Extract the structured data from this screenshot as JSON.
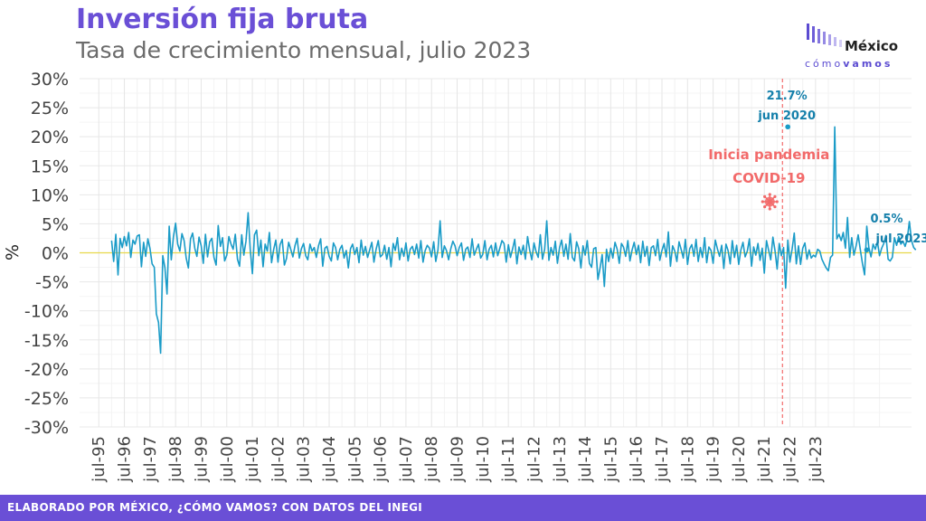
{
  "header": {
    "title": "Inversión fija bruta",
    "subtitle": "Tasa de crecimiento mensual, julio 2023"
  },
  "logo": {
    "name": "México",
    "tag_light": "cómo",
    "tag_bold": "vamos"
  },
  "footer": {
    "text": "ELABORADO POR MÉXICO, ¿CÓMO VAMOS? CON DATOS DEL INEGI"
  },
  "colors": {
    "title": "#6a4fd6",
    "line": "#1a9bc7",
    "zero_line": "#e8d84a",
    "pandemic": "#f26a6a",
    "footer_bg": "#6a4fd6"
  },
  "chart_data": {
    "type": "line",
    "ylabel": "%",
    "ylim": [
      -30,
      30
    ],
    "yticks": [
      "30%",
      "25%",
      "20%",
      "15%",
      "10%",
      "5%",
      "0%",
      "-5%",
      "-10%",
      "-15%",
      "-20%",
      "-25%",
      "-30%"
    ],
    "ytick_values": [
      30,
      25,
      20,
      15,
      10,
      5,
      0,
      -5,
      -10,
      -15,
      -20,
      -25,
      -30
    ],
    "xticks": [
      "jul-95",
      "jul-96",
      "jul-97",
      "jul-98",
      "jul-99",
      "jul-00",
      "jul-01",
      "jul-02",
      "jul-03",
      "jul-04",
      "jul-05",
      "jul-06",
      "jul-07",
      "jul-08",
      "jul-09",
      "jul-10",
      "jul-11",
      "jul-12",
      "jul-13",
      "jul-14",
      "jul-15",
      "jul-16",
      "jul-17",
      "jul-18",
      "jul-19",
      "jul-20",
      "jul-21",
      "jul-22",
      "jul-23"
    ],
    "xtick_months": [
      -6,
      6,
      18,
      30,
      42,
      54,
      66,
      78,
      90,
      102,
      114,
      126,
      138,
      150,
      162,
      174,
      186,
      198,
      210,
      222,
      234,
      246,
      258,
      270,
      282,
      294,
      306,
      318,
      330
    ],
    "start": "1994-01",
    "end": "2023-07",
    "grid": true,
    "series": [
      {
        "values": [
          2.1,
          -1.5,
          3.2,
          -3.8,
          2.5,
          0.9,
          2.8,
          1.2,
          3.5,
          -0.8,
          2.2,
          1.5,
          2.9,
          3.1,
          -2.4,
          1.8,
          -0.6,
          2.4,
          0.8,
          -1.9,
          -2.5,
          -10.5,
          -12.0,
          -17.3,
          -0.5,
          -2.6,
          -7.1,
          4.6,
          -1.2,
          2.8,
          5.1,
          1.5,
          0.3,
          3.3,
          2.1,
          -0.9,
          -2.6,
          2.4,
          3.4,
          0.8,
          -0.6,
          2.7,
          1.2,
          -1.8,
          3.2,
          -0.7,
          1.9,
          2.5,
          -0.8,
          -2.1,
          4.7,
          1.1,
          2.6,
          -1.4,
          -0.4,
          2.8,
          1.5,
          0.6,
          3.2,
          -1.1,
          -2.3,
          3.1,
          -0.4,
          2.0,
          6.9,
          0.6,
          -3.6,
          3.1,
          3.9,
          -0.5,
          2.2,
          -2.4,
          1.5,
          0.3,
          3.5,
          -1.7,
          0.6,
          2.2,
          -1.6,
          1.4,
          2.3,
          -2.1,
          -1.0,
          1.8,
          0.6,
          -0.7,
          1.3,
          2.5,
          -0.9,
          0.7,
          1.6,
          -0.5,
          -1.2,
          1.5,
          0.3,
          0.9,
          -0.8,
          1.2,
          2.4,
          -2.3,
          0.8,
          1.1,
          -0.6,
          -1.4,
          1.7,
          0.9,
          -1.2,
          0.6,
          1.3,
          -0.9,
          0.4,
          -2.6,
          0.7,
          1.5,
          -0.3,
          0.9,
          -1.7,
          2.2,
          -0.4,
          1.1,
          -0.8,
          0.5,
          1.8,
          -1.6,
          0.6,
          2.1,
          -0.7,
          -0.3,
          1.3,
          -1.1,
          0.9,
          -2.4,
          1.6,
          0.4,
          2.6,
          -1.2,
          0.8,
          -0.6,
          1.7,
          -1.4,
          0.6,
          1.1,
          -0.3,
          1.5,
          -0.9,
          2.1,
          -1.6,
          0.4,
          1.3,
          0.8,
          -0.7,
          1.9,
          -1.5,
          0.5,
          5.5,
          -0.8,
          1.2,
          0.4,
          -1.2,
          0.7,
          2.0,
          1.2,
          -0.5,
          0.9,
          1.7,
          -1.3,
          0.6,
          1.0,
          -0.8,
          2.4,
          -0.4,
          0.6,
          1.5,
          -0.9,
          -0.3,
          2.1,
          -1.2,
          0.6,
          1.3,
          -0.7,
          1.7,
          -0.5,
          0.8,
          2.1,
          1.6,
          -1.6,
          1.4,
          -0.8,
          0.7,
          2.3,
          -1.9,
          1.0,
          -0.3,
          1.3,
          -1.1,
          2.8,
          0.5,
          -1.2,
          1.7,
          0.2,
          -0.8,
          3.1,
          -1.1,
          0.6,
          5.5,
          -1.3,
          0.9,
          -0.4,
          2.0,
          -1.8,
          0.9,
          2.2,
          -0.6,
          1.5,
          -1.1,
          3.3,
          -0.8,
          -1.4,
          1.9,
          0.7,
          -2.6,
          1.2,
          -0.4,
          2.1,
          -1.8,
          -2.5,
          0.7,
          0.9,
          -4.6,
          -2.6,
          -0.3,
          -5.8,
          0.6,
          -1.5,
          0.8,
          -0.9,
          1.8,
          0.6,
          -1.8,
          1.6,
          1.0,
          -0.6,
          2.1,
          -1.4,
          0.5,
          1.8,
          -0.3,
          1.3,
          -1.7,
          2.0,
          -0.6,
          1.1,
          -2.2,
          0.9,
          1.2,
          -0.5,
          2.3,
          -1.3,
          0.4,
          1.6,
          -0.7,
          3.6,
          -2.3,
          1.2,
          0.3,
          -1.5,
          1.9,
          0.6,
          -0.9,
          2.3,
          -2.0,
          0.7,
          1.4,
          -0.6,
          2.3,
          -1.5,
          0.9,
          -0.8,
          2.6,
          -1.7,
          1.0,
          0.4,
          -1.8,
          2.2,
          0.7,
          -0.6,
          1.3,
          -2.7,
          1.5,
          0.4,
          -1.9,
          2.1,
          -0.8,
          1.3,
          -2.0,
          0.5,
          1.8,
          -0.7,
          0.3,
          2.4,
          -2.3,
          1.0,
          -0.4,
          1.6,
          -1.3,
          0.8,
          -3.5,
          2.1,
          0.5,
          -1.2,
          2.7,
          0.4,
          -2.8,
          1.6,
          -0.5,
          0.9,
          -6.1,
          2.2,
          -1.6,
          0.6,
          3.4,
          -1.9,
          1.2,
          -2.0,
          0.8,
          1.7,
          -1.1,
          0.5,
          -0.9,
          -0.4,
          -0.7,
          0.6,
          0.3,
          -1.1,
          -1.9,
          -2.6,
          -3.1,
          -0.8,
          -0.4,
          21.7,
          2.4,
          3.2,
          2.1,
          3.5,
          0.8,
          6.1,
          -0.8,
          2.6,
          -0.4,
          1.2,
          3.1,
          0.5,
          -1.8,
          -3.8,
          4.6,
          0.9,
          -0.7,
          1.5,
          0.6,
          1.9,
          -0.5,
          0.8,
          1.6,
          3.0,
          -1.1,
          -1.4,
          -0.8,
          2.6,
          1.3,
          2.8,
          1.5,
          2.0,
          1.1,
          2.4,
          5.4,
          2.1,
          0.9,
          0.5
        ]
      }
    ],
    "annotations": [
      {
        "label_value": "21.7%",
        "label_date": "jun 2020",
        "month": 317,
        "value": 21.7
      },
      {
        "label_value": "0.5%",
        "label_date": "jul 2023",
        "month": 354,
        "value": 0.5
      },
      {
        "label": "Inicia pandemia",
        "label2": "COVID-19",
        "month": 314
      }
    ]
  }
}
